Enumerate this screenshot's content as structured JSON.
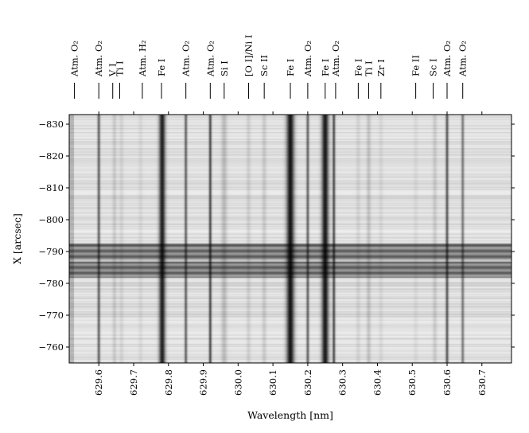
{
  "chart_data": {
    "type": "heatmap",
    "title": "",
    "xlabel": "Wavelength [nm]",
    "ylabel": "X [arcsec]",
    "xlim": [
      629.515,
      630.785
    ],
    "ylim": [
      -755,
      -833
    ],
    "colormap": "gray",
    "grid": false,
    "x_ticks": [
      "629.6",
      "629.7",
      "629.8",
      "629.9",
      "630.0",
      "630.1",
      "630.2",
      "630.3",
      "630.4",
      "630.5",
      "630.6",
      "630.7"
    ],
    "y_ticks": [
      "−830",
      "−820",
      "−810",
      "−800",
      "−790",
      "−780",
      "−770",
      "−760"
    ],
    "x_tick_values": [
      629.6,
      629.7,
      629.8,
      629.9,
      630.0,
      630.1,
      630.2,
      630.3,
      630.4,
      630.5,
      630.6,
      630.7
    ],
    "y_tick_values": [
      -830,
      -820,
      -810,
      -800,
      -790,
      -780,
      -770,
      -760
    ],
    "line_ids": [
      {
        "label": "Atm. O₂",
        "wavelength": 629.53
      },
      {
        "label": "Atm. O₂",
        "wavelength": 629.6
      },
      {
        "label": "V I",
        "wavelength": 629.64
      },
      {
        "label": "Ti I",
        "wavelength": 629.66
      },
      {
        "label": "Atm. H₂",
        "wavelength": 629.725
      },
      {
        "label": "Fe I",
        "wavelength": 629.78
      },
      {
        "label": "Atm. O₂",
        "wavelength": 629.85
      },
      {
        "label": "Atm. O₂",
        "wavelength": 629.92
      },
      {
        "label": "Si I",
        "wavelength": 629.96
      },
      {
        "label": "[O I]/Ni I",
        "wavelength": 630.03
      },
      {
        "label": "Sc II",
        "wavelength": 630.075
      },
      {
        "label": "Fe I",
        "wavelength": 630.15
      },
      {
        "label": "Atm. O₂",
        "wavelength": 630.2
      },
      {
        "label": "Fe I",
        "wavelength": 630.25
      },
      {
        "label": "Atm. O₂",
        "wavelength": 630.28
      },
      {
        "label": "Fe I",
        "wavelength": 630.345
      },
      {
        "label": "Ti I",
        "wavelength": 630.375
      },
      {
        "label": "Zr I",
        "wavelength": 630.41
      },
      {
        "label": "Fe II",
        "wavelength": 630.51
      },
      {
        "label": "Sc I",
        "wavelength": 630.56
      },
      {
        "label": "Atm. O₂",
        "wavelength": 630.6
      },
      {
        "label": "Atm. O₂",
        "wavelength": 630.645
      }
    ],
    "absorption_lines": [
      {
        "wavelength": 629.6,
        "strength": 0.55,
        "width": 0.004
      },
      {
        "wavelength": 629.645,
        "strength": 0.12,
        "width": 0.006
      },
      {
        "wavelength": 629.665,
        "strength": 0.08,
        "width": 0.006
      },
      {
        "wavelength": 629.72,
        "strength": 0.06,
        "width": 0.006
      },
      {
        "wavelength": 629.782,
        "strength": 0.85,
        "width": 0.009
      },
      {
        "wavelength": 629.85,
        "strength": 0.55,
        "width": 0.004
      },
      {
        "wavelength": 629.92,
        "strength": 0.65,
        "width": 0.004
      },
      {
        "wavelength": 629.96,
        "strength": 0.18,
        "width": 0.008
      },
      {
        "wavelength": 630.03,
        "strength": 0.1,
        "width": 0.006
      },
      {
        "wavelength": 630.075,
        "strength": 0.12,
        "width": 0.006
      },
      {
        "wavelength": 630.15,
        "strength": 0.9,
        "width": 0.011
      },
      {
        "wavelength": 630.2,
        "strength": 0.55,
        "width": 0.004
      },
      {
        "wavelength": 630.25,
        "strength": 0.88,
        "width": 0.01
      },
      {
        "wavelength": 630.275,
        "strength": 0.65,
        "width": 0.004
      },
      {
        "wavelength": 630.345,
        "strength": 0.08,
        "width": 0.006
      },
      {
        "wavelength": 630.375,
        "strength": 0.15,
        "width": 0.006
      },
      {
        "wavelength": 630.41,
        "strength": 0.06,
        "width": 0.006
      },
      {
        "wavelength": 630.51,
        "strength": 0.05,
        "width": 0.006
      },
      {
        "wavelength": 630.565,
        "strength": 0.12,
        "width": 0.006
      },
      {
        "wavelength": 630.6,
        "strength": 0.6,
        "width": 0.004
      },
      {
        "wavelength": 630.645,
        "strength": 0.45,
        "width": 0.004
      }
    ],
    "dark_band": {
      "x_from": -792.5,
      "x_to": -782,
      "darkness": 0.6
    }
  }
}
